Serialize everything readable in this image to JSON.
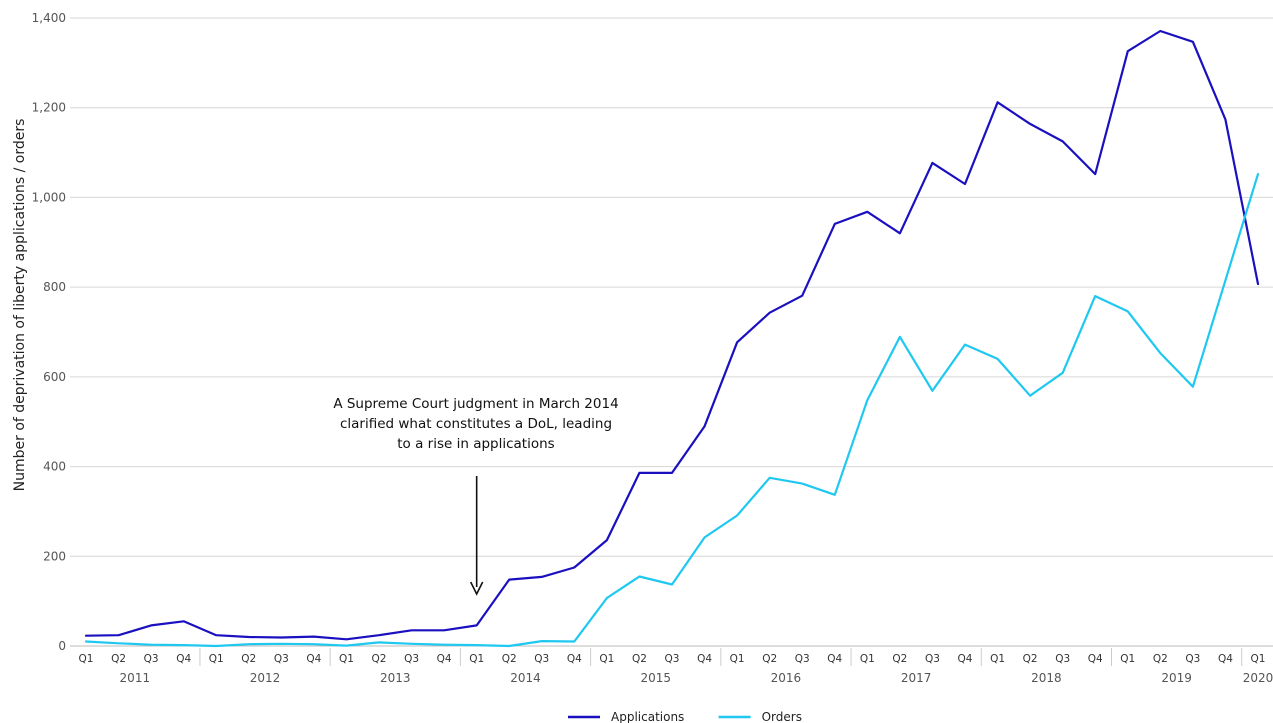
{
  "chart_data": {
    "type": "line",
    "title": "",
    "xlabel": "",
    "ylabel": "Number of deprivation of liberty applications / orders",
    "ylim": [
      0,
      1400
    ],
    "yticks": [
      0,
      200,
      400,
      600,
      800,
      1000,
      1200,
      1400
    ],
    "ytick_labels": [
      "0",
      "200",
      "400",
      "600",
      "800",
      "1,000",
      "1,200",
      "1,400"
    ],
    "grid": "horizontal",
    "legend_position": "bottom-center",
    "x_quarters": [
      "Q1",
      "Q2",
      "Q3",
      "Q4",
      "Q1",
      "Q2",
      "Q3",
      "Q4",
      "Q1",
      "Q2",
      "Q3",
      "Q4",
      "Q1",
      "Q2",
      "Q3",
      "Q4",
      "Q1",
      "Q2",
      "Q3",
      "Q4",
      "Q1",
      "Q2",
      "Q3",
      "Q4",
      "Q1",
      "Q2",
      "Q3",
      "Q4",
      "Q1",
      "Q2",
      "Q3",
      "Q4",
      "Q1",
      "Q2",
      "Q3",
      "Q4",
      "Q1"
    ],
    "x_years": [
      {
        "label": "2011",
        "start": 0,
        "count": 4
      },
      {
        "label": "2012",
        "start": 4,
        "count": 4
      },
      {
        "label": "2013",
        "start": 8,
        "count": 4
      },
      {
        "label": "2014",
        "start": 12,
        "count": 4
      },
      {
        "label": "2015",
        "start": 16,
        "count": 4
      },
      {
        "label": "2016",
        "start": 20,
        "count": 4
      },
      {
        "label": "2017",
        "start": 24,
        "count": 4
      },
      {
        "label": "2018",
        "start": 28,
        "count": 4
      },
      {
        "label": "2019",
        "start": 32,
        "count": 4
      },
      {
        "label": "2020",
        "start": 36,
        "count": 1
      }
    ],
    "series": [
      {
        "name": "Applications",
        "color": "#1a10c0",
        "values": [
          23,
          24,
          46,
          55,
          24,
          20,
          19,
          21,
          15,
          24,
          35,
          35,
          46,
          148,
          154,
          175,
          236,
          386,
          386,
          490,
          677,
          743,
          781,
          941,
          968,
          920,
          1077,
          1030,
          1212,
          1164,
          1125,
          1052,
          1326,
          1371,
          1347,
          1174,
          807
        ]
      },
      {
        "name": "Orders",
        "color": "#1ec8f0",
        "values": [
          10,
          6,
          3,
          2,
          0,
          4,
          5,
          4,
          1,
          8,
          5,
          3,
          2,
          0,
          11,
          10,
          107,
          155,
          137,
          242,
          291,
          375,
          362,
          337,
          548,
          689,
          569,
          672,
          640,
          558,
          609,
          780,
          746,
          653,
          578,
          815,
          1052
        ]
      }
    ],
    "annotation": {
      "lines": [
        "A Supreme Court judgment in March 2014",
        "clarified what constitutes a DoL, leading",
        "to a rise in applications"
      ],
      "points_to_index": 12
    }
  }
}
